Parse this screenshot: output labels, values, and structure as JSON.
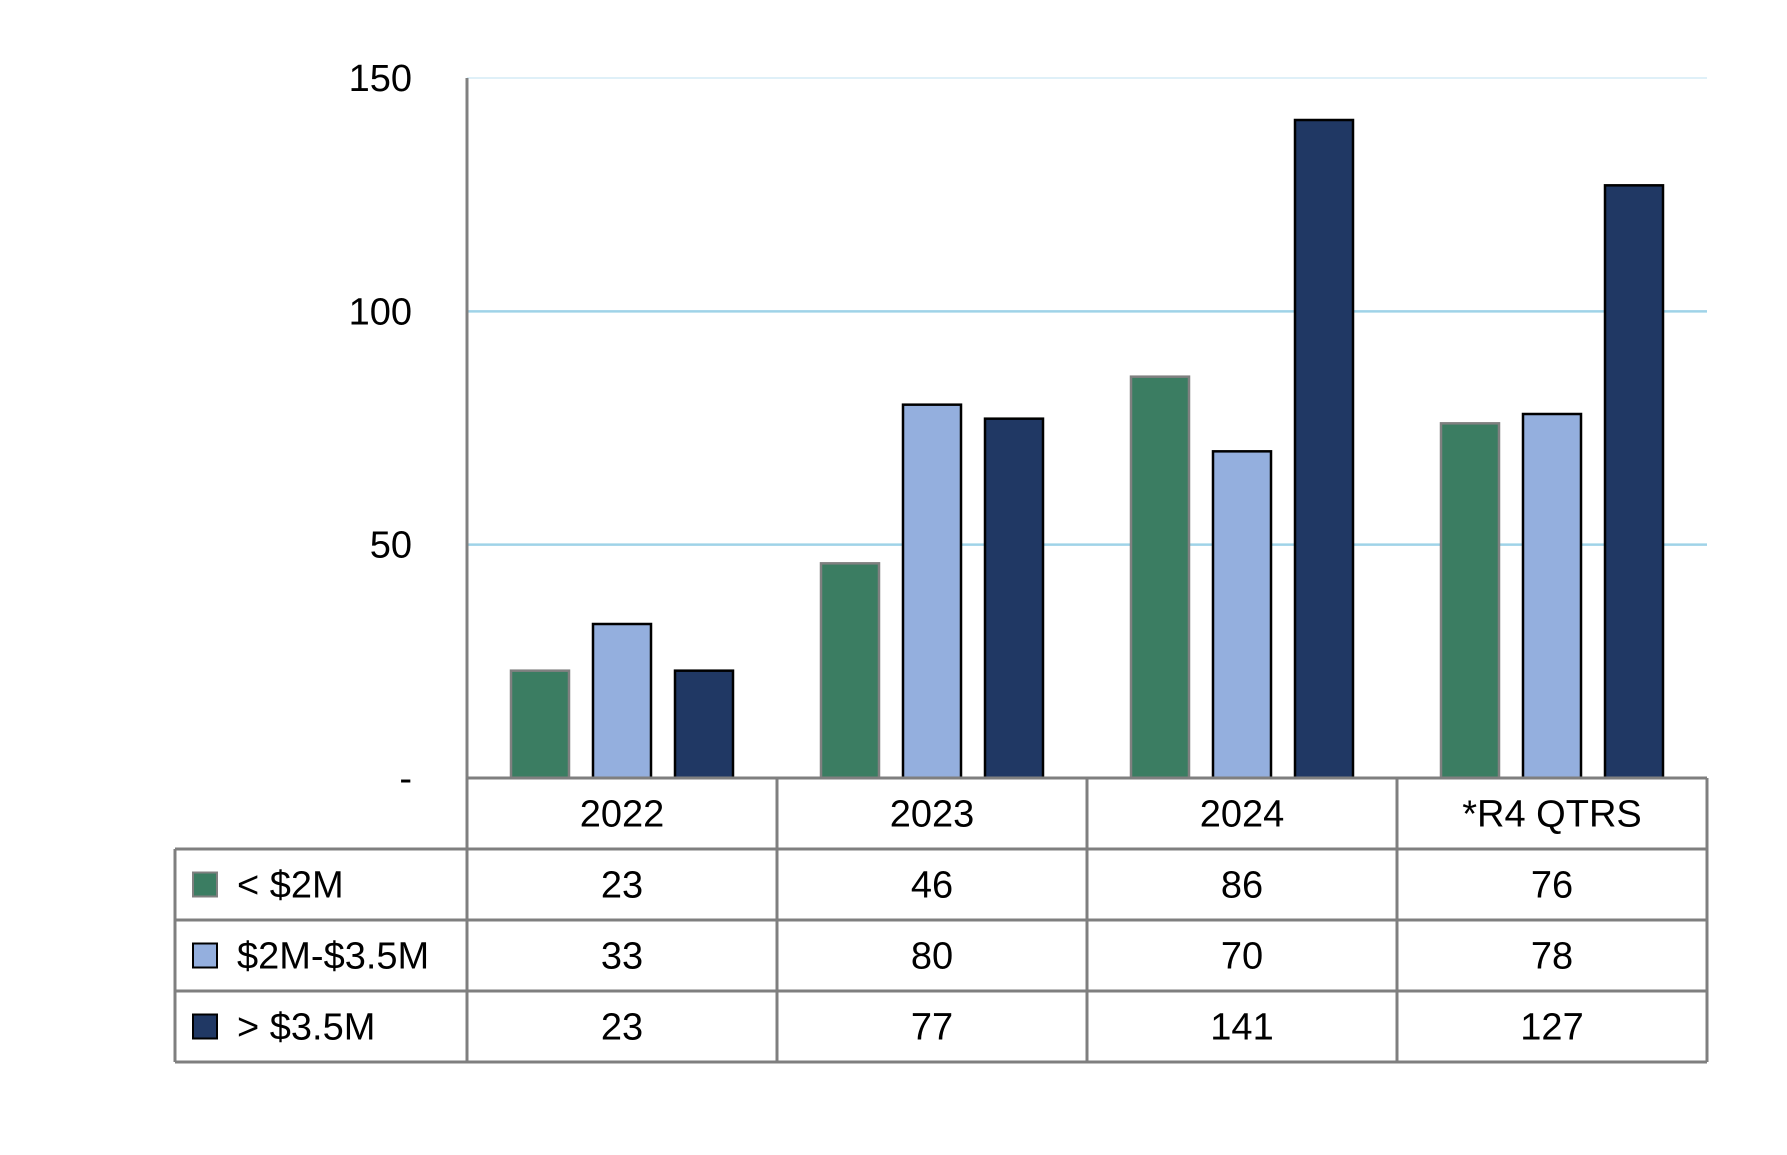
{
  "chart_data": {
    "type": "bar",
    "categories": [
      "2022",
      "2023",
      "2024",
      "*R4 QTRS"
    ],
    "series": [
      {
        "name": "< $2M",
        "values": [
          23,
          46,
          86,
          76
        ],
        "color": "#3b7d62"
      },
      {
        "name": "$2M-$3.5M",
        "values": [
          33,
          80,
          70,
          78
        ],
        "color": "#94afde"
      },
      {
        "name": "> $3.5M",
        "values": [
          23,
          77,
          141,
          127
        ],
        "color": "#203864"
      }
    ],
    "y_ticks": [
      "-",
      "50",
      "100",
      "150"
    ],
    "ylim": [
      0,
      150
    ],
    "grid": true,
    "grid_color": "#9fd3e8",
    "legend": "data table below chart",
    "data_table": {
      "rows": [
        [
          "23",
          "46",
          "86",
          "76"
        ],
        [
          "33",
          "80",
          "70",
          "78"
        ],
        [
          "23",
          "77",
          "141",
          "127"
        ]
      ]
    }
  }
}
